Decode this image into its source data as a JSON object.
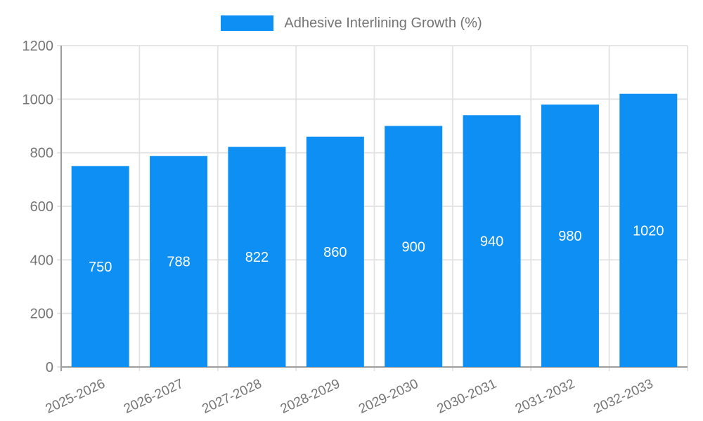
{
  "chart_data": {
    "type": "bar",
    "title": "Adhesive Interlining Growth (%)",
    "categories": [
      "2025-2026",
      "2026-2027",
      "2027-2028",
      "2028-2029",
      "2029-2030",
      "2030-2031",
      "2031-2032",
      "2032-2033"
    ],
    "values": [
      750,
      788,
      822,
      860,
      900,
      940,
      980,
      1020
    ],
    "xlabel": "",
    "ylabel": "",
    "ylim": [
      0,
      1200
    ],
    "ytick_step": 200,
    "yticks": [
      0,
      200,
      400,
      600,
      800,
      1000,
      1200
    ],
    "grid": true,
    "legend_position": "top",
    "bar_color": "#0d8ff3",
    "value_label_color": "#ffffff",
    "axis_text_color": "#757575",
    "gridline_color": "#e3e3e3",
    "axis_line_color": "#9e9e9e",
    "x_label_angle": -25
  }
}
